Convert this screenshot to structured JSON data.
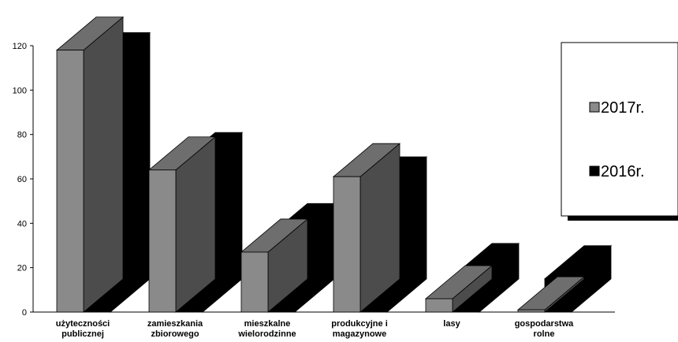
{
  "chart_data": {
    "type": "bar",
    "style": "3d-clustered",
    "categories": [
      [
        "użyteczności",
        "publicznej"
      ],
      [
        "zamieszkania",
        "zbiorowego"
      ],
      [
        "mieszkalne",
        "wielorodzinne"
      ],
      [
        "produkcyjne i",
        "magazynowe"
      ],
      [
        "lasy"
      ],
      [
        "gospodarstwa",
        "rolne"
      ]
    ],
    "series": [
      {
        "name": "2017r.",
        "values": [
          118,
          64,
          27,
          61,
          6,
          1
        ],
        "color": "#8a8a8a"
      },
      {
        "name": "2016r.",
        "values": [
          111,
          66,
          34,
          55,
          16,
          15
        ],
        "color": "#000000"
      }
    ],
    "ylim": [
      0,
      120
    ],
    "yticks": [
      0,
      20,
      40,
      60,
      80,
      100,
      120
    ],
    "grid": false,
    "legend_position": "right"
  }
}
